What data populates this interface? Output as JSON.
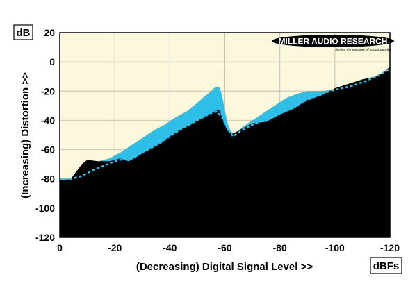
{
  "chart_data": {
    "type": "area",
    "title": "",
    "xlabel": "(Decreasing) Digital Signal Level >>",
    "ylabel": "(Increasing) Distortion >>",
    "x_unit": "dBFs",
    "y_unit": "dB",
    "xlim": [
      0,
      -120
    ],
    "ylim": [
      -120,
      20
    ],
    "x_ticks": [
      "0",
      "-20",
      "-40",
      "-60",
      "-80",
      "-100",
      "-120"
    ],
    "y_ticks": [
      "20",
      "0",
      "-20",
      "-40",
      "-60",
      "-80",
      "-100",
      "-120"
    ],
    "grid": true,
    "background_color": "#fbf8dc",
    "grid_color": "#c2c2c2",
    "series": [
      {
        "color": "#2ebfe9",
        "x": [
          0,
          -2,
          -4,
          -6,
          -8,
          -10,
          -14,
          -18,
          -22,
          -26,
          -30,
          -34,
          -38,
          -42,
          -46,
          -50,
          -53,
          -55,
          -56,
          -57,
          -58,
          -59,
          -60,
          -61,
          -62,
          -63,
          -64,
          -66,
          -70,
          -74,
          -78,
          -82,
          -86,
          -90,
          -95,
          -100,
          -105,
          -110,
          -115,
          -120
        ],
        "values": [
          -80,
          -80,
          -80,
          -78,
          -74,
          -70,
          -68,
          -66,
          -62,
          -57,
          -52,
          -47,
          -43,
          -38,
          -34,
          -28,
          -23,
          -20,
          -18,
          -17,
          -17,
          -23,
          -33,
          -42,
          -47,
          -49,
          -49,
          -45,
          -40,
          -35,
          -30,
          -25,
          -22,
          -20,
          -20,
          -19,
          -17,
          -14,
          -11,
          -4
        ]
      },
      {
        "color": "#000000",
        "x": [
          0,
          -2,
          -4,
          -6,
          -8,
          -10,
          -14,
          -18,
          -22,
          -25,
          -28,
          -32,
          -36,
          -40,
          -44,
          -48,
          -52,
          -55,
          -57,
          -58,
          -59,
          -60,
          -61,
          -62,
          -63,
          -65,
          -70,
          -75,
          -80,
          -85,
          -90,
          -95,
          -100,
          -105,
          -110,
          -115,
          -118,
          -120
        ],
        "values": [
          -80,
          -81,
          -80,
          -75,
          -70,
          -67,
          -68,
          -68,
          -66,
          -68,
          -65,
          -60,
          -56,
          -51,
          -46,
          -42,
          -38,
          -35,
          -33,
          -33,
          -38,
          -43,
          -47,
          -49,
          -49,
          -47,
          -42,
          -41,
          -36,
          -32,
          -26,
          -23,
          -18,
          -15,
          -12,
          -10,
          -7,
          -3
        ]
      },
      {
        "color": "#2ebfe9",
        "style": "dashed",
        "x": [
          0,
          -4,
          -8,
          -12,
          -16,
          -20,
          -24,
          -28,
          -32,
          -36,
          -40,
          -44,
          -48,
          -52,
          -55,
          -57,
          -59,
          -61,
          -63,
          -65,
          -70,
          -75,
          -80,
          -85,
          -90,
          -95,
          -100,
          -105,
          -110,
          -115,
          -118,
          -120
        ],
        "values": [
          -80,
          -80,
          -78,
          -74,
          -71,
          -68,
          -66,
          -64,
          -60,
          -56,
          -51,
          -46,
          -42,
          -38,
          -35,
          -34,
          -38,
          -46,
          -51,
          -48,
          -43,
          -39,
          -34,
          -30,
          -26,
          -22,
          -19,
          -17,
          -14,
          -10,
          -7,
          -5
        ]
      }
    ]
  },
  "logo": {
    "name": "MILLER AUDIO RESEARCH",
    "tagline": "Setting the measure of sound quality"
  }
}
